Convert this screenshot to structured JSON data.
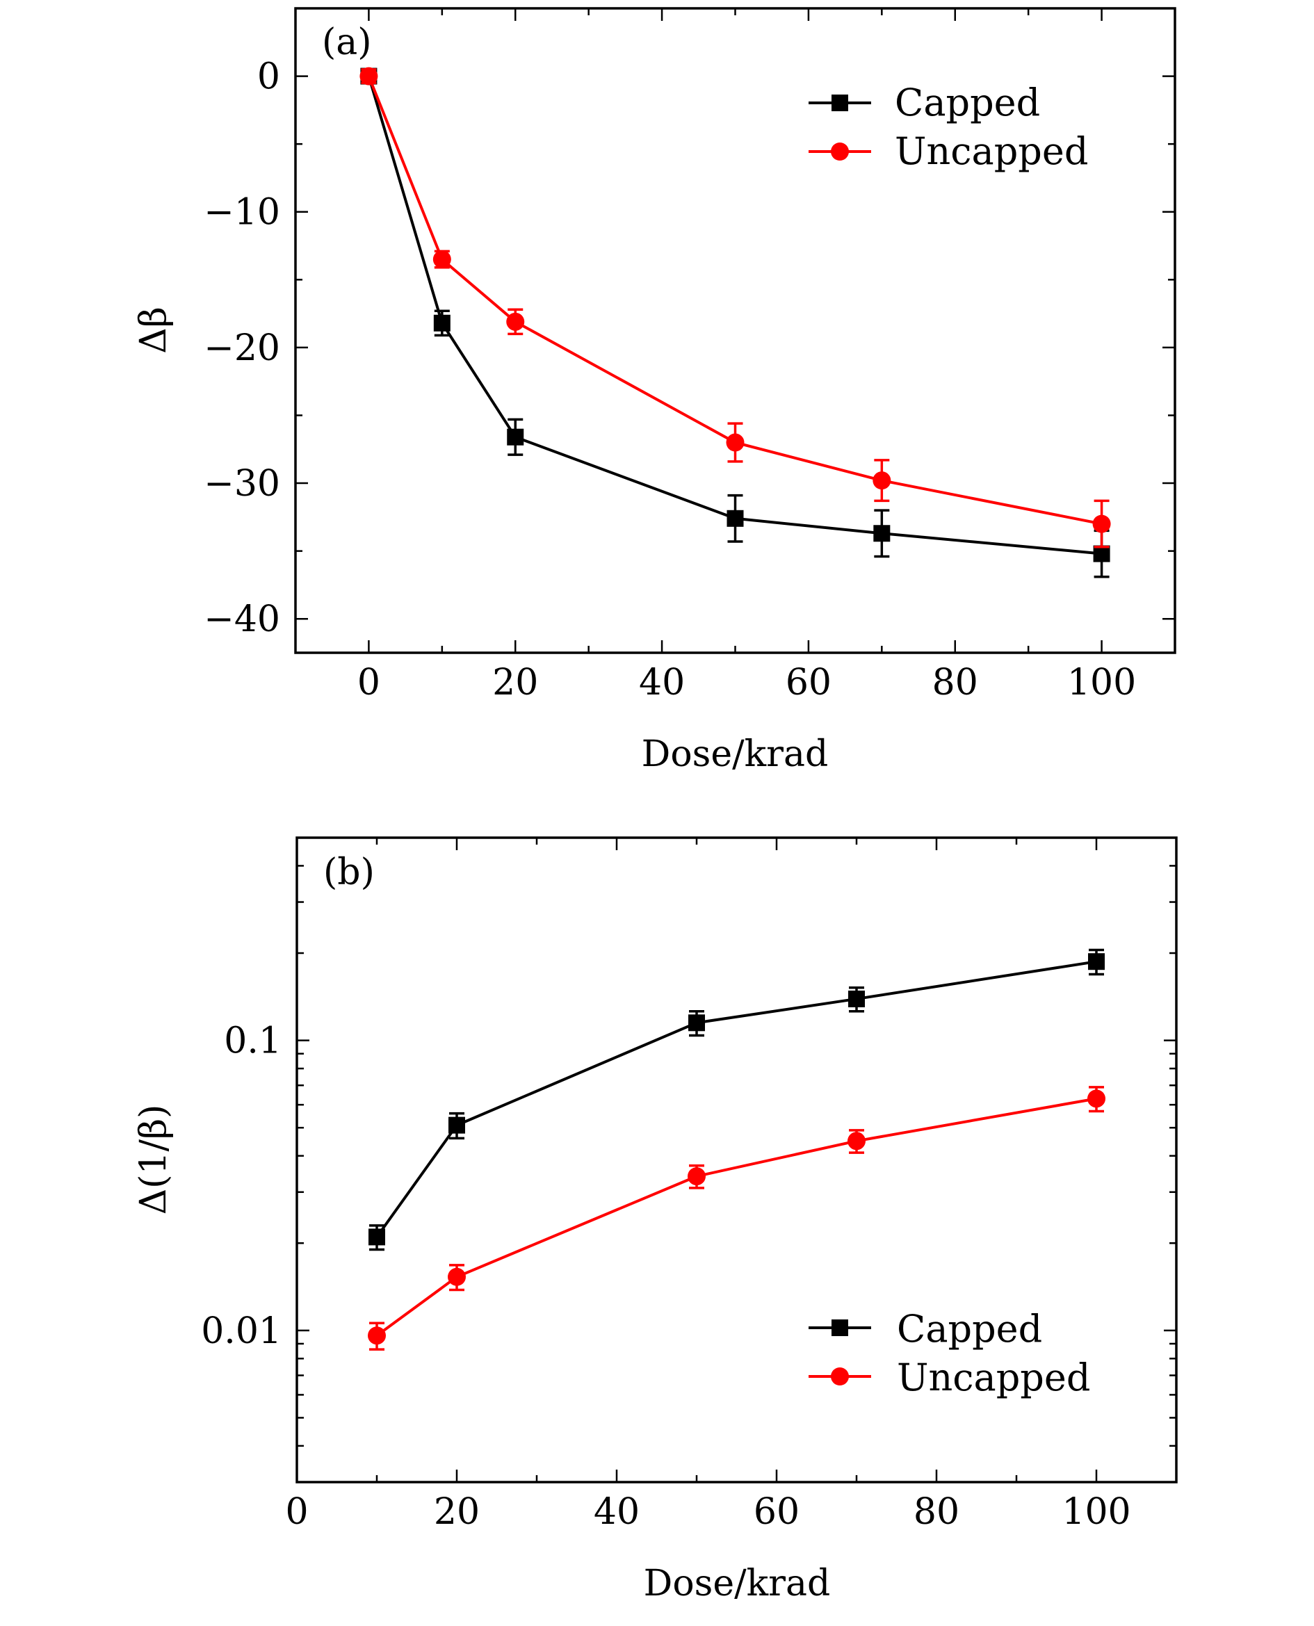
{
  "chart_data": [
    {
      "type": "line",
      "panel_label": "(a)",
      "xlabel": "Dose/krad",
      "ylabel": "Δβ",
      "xlim": [
        -10,
        110
      ],
      "ylim": [
        -42.5,
        5
      ],
      "xticks": [
        0,
        20,
        40,
        60,
        80,
        100
      ],
      "xtick_labels": [
        "0",
        "20",
        "40",
        "60",
        "80",
        "100"
      ],
      "yticks": [
        0,
        -10,
        -20,
        -30,
        -40
      ],
      "ytick_labels": [
        "0",
        "−10",
        "−20",
        "−30",
        "−40"
      ],
      "legend_position": "top-right",
      "series": [
        {
          "name": "Capped",
          "color": "#000000",
          "marker": "square",
          "x": [
            0,
            10,
            20,
            50,
            70,
            100
          ],
          "y": [
            0,
            -18.2,
            -26.6,
            -32.6,
            -33.7,
            -35.2
          ],
          "err": [
            0.5,
            0.9,
            1.3,
            1.7,
            1.7,
            1.7
          ]
        },
        {
          "name": "Uncapped",
          "color": "#ff0000",
          "marker": "circle",
          "x": [
            0,
            10,
            20,
            50,
            70,
            100
          ],
          "y": [
            0,
            -13.5,
            -18.1,
            -27.0,
            -29.8,
            -33.0
          ],
          "err": [
            0.5,
            0.6,
            0.9,
            1.4,
            1.5,
            1.7
          ]
        }
      ]
    },
    {
      "type": "line",
      "panel_label": "(b)",
      "xlabel": "Dose/krad",
      "ylabel": "Δ(1/β)",
      "xlim": [
        0,
        110
      ],
      "ylim": [
        0.003,
        0.5
      ],
      "yscale": "log",
      "xticks": [
        0,
        20,
        40,
        60,
        80,
        100
      ],
      "xtick_labels": [
        "0",
        "20",
        "40",
        "60",
        "80",
        "100"
      ],
      "yticks": [
        0.1,
        0.01
      ],
      "ytick_labels": [
        "0.1",
        "0.01"
      ],
      "legend_position": "bottom-right",
      "series": [
        {
          "name": "Capped",
          "color": "#000000",
          "marker": "square",
          "x": [
            10,
            20,
            50,
            70,
            100
          ],
          "y": [
            0.021,
            0.051,
            0.115,
            0.139,
            0.187
          ],
          "err": [
            0.002,
            0.005,
            0.011,
            0.013,
            0.018
          ]
        },
        {
          "name": "Uncapped",
          "color": "#ff0000",
          "marker": "circle",
          "x": [
            10,
            20,
            50,
            70,
            100
          ],
          "y": [
            0.0096,
            0.0153,
            0.034,
            0.045,
            0.063
          ],
          "err": [
            0.001,
            0.0015,
            0.003,
            0.004,
            0.006
          ]
        }
      ]
    }
  ]
}
